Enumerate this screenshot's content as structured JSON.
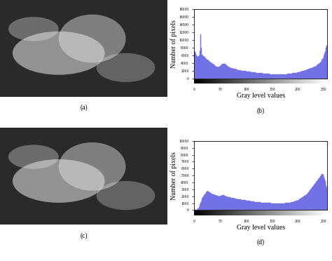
{
  "chart_data": [
    {
      "type": "image",
      "title": "(a)"
    },
    {
      "type": "histogram",
      "title": "(b)",
      "x_label": "Gray level values",
      "y_label": "Number of pixels",
      "color": "#7272e6",
      "bins": [
        0,
        1,
        2,
        3,
        4,
        5,
        6,
        7,
        8,
        9,
        10,
        11,
        12,
        13,
        14,
        15,
        16,
        17,
        18,
        19,
        20,
        21,
        22,
        23,
        24,
        25,
        26,
        27,
        28,
        29,
        30,
        31,
        32,
        33,
        34,
        35,
        36,
        37,
        38,
        39,
        40,
        41,
        42,
        43,
        44,
        45,
        46,
        47,
        48,
        49,
        50,
        51,
        52,
        53,
        54,
        55,
        56,
        57,
        58,
        59,
        60,
        61,
        62,
        63,
        64,
        65,
        66,
        67,
        68,
        69,
        70,
        71,
        72,
        73,
        74,
        75,
        76,
        77,
        78,
        79,
        80,
        81,
        82,
        83,
        84,
        85,
        86,
        87,
        88,
        89,
        90,
        91,
        92,
        93,
        94,
        95,
        96,
        97,
        98,
        99,
        100,
        101,
        102,
        103,
        104,
        105,
        106,
        107,
        108,
        109,
        110,
        111,
        112,
        113,
        114,
        115,
        116,
        117,
        118,
        119,
        120,
        121,
        122,
        123,
        124,
        125,
        126,
        127,
        128,
        129,
        130,
        131,
        132,
        133,
        134,
        135,
        136,
        137,
        138,
        139,
        140,
        141,
        142,
        143,
        144,
        145,
        146,
        147,
        148,
        149,
        150,
        151,
        152,
        153,
        154,
        155,
        156,
        157,
        158,
        159,
        160,
        161,
        162,
        163,
        164,
        165,
        166,
        167,
        168,
        169,
        170,
        171,
        172,
        173,
        174,
        175,
        176,
        177,
        178,
        179,
        180,
        181,
        182,
        183,
        184,
        185,
        186,
        187,
        188,
        189,
        190,
        191,
        192,
        193,
        194,
        195,
        196,
        197,
        198,
        199,
        200,
        201,
        202,
        203,
        204,
        205,
        206,
        207,
        208,
        209,
        210,
        211,
        212,
        213,
        214,
        215,
        216,
        217,
        218,
        219,
        220,
        221,
        222,
        223,
        224,
        225,
        226,
        227,
        228,
        229,
        230,
        231,
        232,
        233,
        234,
        235,
        236,
        237,
        238,
        239,
        240,
        241,
        242,
        243,
        244,
        245,
        246,
        247,
        248,
        249,
        250,
        251,
        252,
        253,
        254,
        255,
        256
      ],
      "counts": [
        7000,
        6800,
        6500,
        6300,
        6000,
        5800,
        5600,
        5500,
        5700,
        6000,
        6500,
        7200,
        11500,
        8000,
        6500,
        6200,
        6000,
        5800,
        5700,
        5600,
        5500,
        5300,
        5200,
        5000,
        4900,
        4800,
        4700,
        4600,
        4500,
        4400,
        4300,
        4200,
        4100,
        4000,
        3900,
        3800,
        3700,
        3600,
        3500,
        3400,
        3300,
        3200,
        3100,
        3000,
        3000,
        2900,
        2900,
        3000,
        3100,
        3200,
        3300,
        3400,
        3500,
        3600,
        3700,
        3800,
        3800,
        3800,
        3700,
        3700,
        3600,
        3500,
        3400,
        3300,
        3200,
        3100,
        3000,
        2900,
        2800,
        2800,
        2700,
        2700,
        2600,
        2600,
        2500,
        2500,
        2500,
        2400,
        2400,
        2400,
        2300,
        2300,
        2300,
        2200,
        2200,
        2200,
        2100,
        2100,
        2100,
        2100,
        2000,
        2000,
        2000,
        2000,
        1950,
        1950,
        1900,
        1900,
        1900,
        1850,
        1850,
        1800,
        1800,
        1800,
        1750,
        1750,
        1700,
        1700,
        1700,
        1650,
        1650,
        1600,
        1600,
        1600,
        1550,
        1550,
        1500,
        1500,
        1500,
        1450,
        1450,
        1450,
        1400,
        1400,
        1400,
        1350,
        1350,
        1350,
        1300,
        1300,
        1300,
        1300,
        1250,
        1250,
        1250,
        1250,
        1200,
        1200,
        1200,
        1200,
        1200,
        1150,
        1150,
        1150,
        1150,
        1150,
        1100,
        1100,
        1100,
        1100,
        1100,
        1100,
        1100,
        1100,
        1050,
        1050,
        1050,
        1050,
        1050,
        1050,
        1050,
        1050,
        1050,
        1050,
        1050,
        1050,
        1050,
        1050,
        1050,
        1050,
        1050,
        1050,
        1100,
        1100,
        1100,
        1100,
        1100,
        1100,
        1100,
        1150,
        1150,
        1150,
        1150,
        1200,
        1200,
        1200,
        1200,
        1250,
        1250,
        1300,
        1300,
        1300,
        1350,
        1350,
        1400,
        1400,
        1450,
        1450,
        1500,
        1500,
        1550,
        1600,
        1600,
        1650,
        1700,
        1700,
        1750,
        1800,
        1850,
        1900,
        1950,
        2000,
        2000,
        2050,
        2100,
        2150,
        2200,
        2250,
        2300,
        2350,
        2400,
        2450,
        2500,
        2550,
        2600,
        2650,
        2700,
        2750,
        2800,
        2850,
        2900,
        2950,
        3000,
        3100,
        3200,
        3300,
        3400,
        3500,
        3600,
        3700,
        3800,
        3900,
        4000,
        4200,
        4400,
        4600,
        4800,
        5000,
        5300,
        5600,
        6000,
        6500,
        7000,
        7500,
        8000,
        8500
      ],
      "xlim": [
        0,
        256
      ],
      "xticks": [
        0,
        50,
        100,
        150,
        200,
        250
      ],
      "ylim": [
        0,
        18000
      ],
      "yticks": [
        0,
        2000,
        4000,
        6000,
        8000,
        10000,
        12000,
        14000,
        16000,
        18000
      ]
    },
    {
      "type": "image",
      "title": "(c)"
    },
    {
      "type": "histogram",
      "title": "(d)",
      "x_label": "Gray level values",
      "y_label": "Number of pixels",
      "color": "#7272e6",
      "bins": [
        0,
        1,
        2,
        3,
        4,
        5,
        6,
        7,
        8,
        9,
        10,
        11,
        12,
        13,
        14,
        15,
        16,
        17,
        18,
        19,
        20,
        21,
        22,
        23,
        24,
        25,
        26,
        27,
        28,
        29,
        30,
        31,
        32,
        33,
        34,
        35,
        36,
        37,
        38,
        39,
        40,
        41,
        42,
        43,
        44,
        45,
        46,
        47,
        48,
        49,
        50,
        51,
        52,
        53,
        54,
        55,
        56,
        57,
        58,
        59,
        60,
        61,
        62,
        63,
        64,
        65,
        66,
        67,
        68,
        69,
        70,
        71,
        72,
        73,
        74,
        75,
        76,
        77,
        78,
        79,
        80,
        81,
        82,
        83,
        84,
        85,
        86,
        87,
        88,
        89,
        90,
        91,
        92,
        93,
        94,
        95,
        96,
        97,
        98,
        99,
        100,
        101,
        102,
        103,
        104,
        105,
        106,
        107,
        108,
        109,
        110,
        111,
        112,
        113,
        114,
        115,
        116,
        117,
        118,
        119,
        120,
        121,
        122,
        123,
        124,
        125,
        126,
        127,
        128,
        129,
        130,
        131,
        132,
        133,
        134,
        135,
        136,
        137,
        138,
        139,
        140,
        141,
        142,
        143,
        144,
        145,
        146,
        147,
        148,
        149,
        150,
        151,
        152,
        153,
        154,
        155,
        156,
        157,
        158,
        159,
        160,
        161,
        162,
        163,
        164,
        165,
        166,
        167,
        168,
        169,
        170,
        171,
        172,
        173,
        174,
        175,
        176,
        177,
        178,
        179,
        180,
        181,
        182,
        183,
        184,
        185,
        186,
        187,
        188,
        189,
        190,
        191,
        192,
        193,
        194,
        195,
        196,
        197,
        198,
        199,
        200,
        201,
        202,
        203,
        204,
        205,
        206,
        207,
        208,
        209,
        210,
        211,
        212,
        213,
        214,
        215,
        216,
        217,
        218,
        219,
        220,
        221,
        222,
        223,
        224,
        225,
        226,
        227,
        228,
        229,
        230,
        231,
        232,
        233,
        234,
        235,
        236,
        237,
        238,
        239,
        240,
        241,
        242,
        243,
        244,
        245,
        246,
        247,
        248,
        249,
        250,
        251,
        252,
        253,
        254,
        255,
        256
      ],
      "counts": [
        0,
        0,
        0,
        0,
        0,
        50,
        100,
        200,
        300,
        500,
        700,
        900,
        1100,
        1300,
        1500,
        1700,
        1900,
        2000,
        2100,
        2200,
        2300,
        2400,
        2500,
        2600,
        2700,
        2750,
        2800,
        2700,
        2600,
        2550,
        2500,
        2450,
        2400,
        2400,
        2350,
        2300,
        2300,
        2250,
        2250,
        2200,
        2200,
        2150,
        2150,
        2100,
        2100,
        2050,
        2050,
        2000,
        2000,
        2000,
        2050,
        2100,
        2100,
        2150,
        2200,
        2200,
        2150,
        2100,
        2100,
        2050,
        2000,
        2000,
        1950,
        1950,
        1900,
        1900,
        1900,
        1850,
        1850,
        1850,
        1800,
        1800,
        1800,
        1750,
        1750,
        1750,
        1700,
        1700,
        1700,
        1650,
        1650,
        1650,
        1600,
        1600,
        1600,
        1600,
        1550,
        1550,
        1550,
        1550,
        1500,
        1500,
        1500,
        1500,
        1500,
        1450,
        1450,
        1450,
        1450,
        1400,
        1400,
        1400,
        1400,
        1350,
        1350,
        1350,
        1350,
        1300,
        1300,
        1300,
        1300,
        1250,
        1250,
        1250,
        1250,
        1250,
        1200,
        1200,
        1200,
        1200,
        1200,
        1200,
        1150,
        1150,
        1150,
        1150,
        1150,
        1150,
        1100,
        1100,
        1100,
        1100,
        1100,
        1100,
        1100,
        1100,
        1100,
        1050,
        1050,
        1050,
        1050,
        1050,
        1050,
        1050,
        1050,
        1050,
        1050,
        1050,
        1000,
        1000,
        1000,
        1000,
        1000,
        1000,
        1000,
        1000,
        1000,
        1000,
        1000,
        1000,
        1000,
        1000,
        1000,
        1000,
        1000,
        1000,
        1000,
        1000,
        1000,
        1000,
        1000,
        1000,
        1000,
        1000,
        1000,
        1050,
        1050,
        1050,
        1050,
        1050,
        1050,
        1100,
        1100,
        1100,
        1100,
        1100,
        1150,
        1150,
        1150,
        1200,
        1200,
        1200,
        1250,
        1250,
        1300,
        1300,
        1350,
        1350,
        1400,
        1400,
        1450,
        1500,
        1550,
        1600,
        1650,
        1700,
        1750,
        1800,
        1850,
        1900,
        1950,
        2000,
        2050,
        2100,
        2150,
        2200,
        2250,
        2300,
        2400,
        2500,
        2600,
        2700,
        2800,
        2900,
        3000,
        3100,
        3200,
        3300,
        3400,
        3500,
        3600,
        3700,
        3800,
        3900,
        4000,
        4100,
        4200,
        4300,
        4400,
        4500,
        4600,
        4700,
        4800,
        4900,
        5000,
        5100,
        5200,
        5200,
        5100,
        5000,
        4800,
        4500,
        4200,
        3900,
        3600,
        3300
      ],
      "xlim": [
        0,
        256
      ],
      "xticks": [
        0,
        50,
        100,
        150,
        200,
        250
      ],
      "ylim": [
        0,
        10000
      ],
      "yticks": [
        0,
        1000,
        2000,
        3000,
        4000,
        5000,
        6000,
        7000,
        8000,
        9000,
        10000
      ]
    }
  ]
}
